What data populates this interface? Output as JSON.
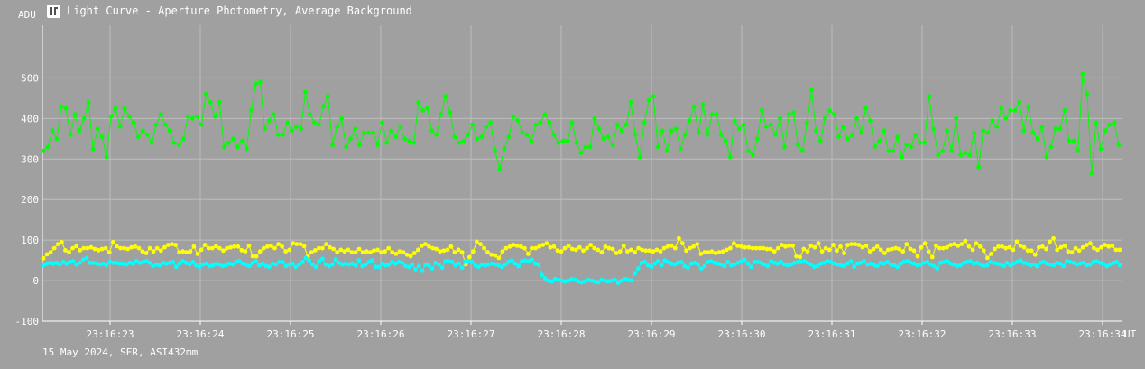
{
  "window": {
    "title": "Light Curve - Aperture Photometry, Average Background",
    "icon": "light-curve-app-icon"
  },
  "footer": {
    "caption": "15 May 2024, SER, ASI432mm"
  },
  "colors": {
    "background": "#a0a0a0",
    "grid": "#bdbdbd",
    "axis": "#ffffff",
    "text": "#ffffff"
  },
  "chart_data": {
    "type": "line",
    "ylabel": "ADU",
    "xlabel": "UT",
    "ylim": [
      -100,
      630
    ],
    "y_ticks": [
      -100,
      0,
      100,
      200,
      300,
      400,
      500
    ],
    "x_time_labels": [
      "23:16:23",
      "23:16:24",
      "23:16:25",
      "23:16:26",
      "23:16:27",
      "23:16:28",
      "23:16:29",
      "23:16:30",
      "23:16:31",
      "23:16:32",
      "23:16:33",
      "23:16:34"
    ],
    "x_time_values": [
      23.0,
      24.0,
      25.0,
      26.0,
      27.0,
      28.0,
      29.0,
      30.0,
      31.0,
      32.0,
      33.0,
      34.0
    ],
    "x_range_seconds": [
      22.25,
      34.22
    ],
    "grid": true,
    "series": [
      {
        "color": "#00ff00",
        "values": [
          320,
          330,
          370,
          350,
          430,
          425,
          360,
          410,
          370,
          400,
          440,
          325,
          375,
          355,
          305,
          405,
          425,
          380,
          425,
          405,
          390,
          355,
          370,
          360,
          340,
          385,
          410,
          385,
          370,
          340,
          335,
          350,
          405,
          400,
          405,
          385,
          460,
          440,
          405,
          440,
          330,
          340,
          350,
          330,
          345,
          325,
          420,
          485,
          490,
          375,
          395,
          410,
          360,
          360,
          390,
          370,
          380,
          375,
          465,
          410,
          390,
          385,
          430,
          455,
          335,
          380,
          400,
          330,
          350,
          375,
          335,
          365,
          365,
          365,
          335,
          390,
          340,
          370,
          355,
          380,
          350,
          345,
          340,
          440,
          420,
          425,
          370,
          360,
          410,
          455,
          415,
          355,
          340,
          345,
          360,
          385,
          350,
          355,
          380,
          390,
          320,
          275,
          325,
          355,
          405,
          395,
          365,
          360,
          345,
          385,
          390,
          410,
          390,
          360,
          340,
          345,
          345,
          390,
          340,
          315,
          330,
          330,
          400,
          375,
          350,
          355,
          335,
          385,
          370,
          385,
          440,
          360,
          305,
          390,
          445,
          455,
          330,
          370,
          320,
          370,
          375,
          325,
          360,
          395,
          430,
          365,
          435,
          360,
          410,
          410,
          360,
          345,
          305,
          395,
          375,
          385,
          320,
          310,
          350,
          420,
          380,
          385,
          360,
          400,
          330,
          410,
          415,
          335,
          320,
          390,
          470,
          370,
          345,
          400,
          420,
          410,
          355,
          380,
          350,
          360,
          400,
          365,
          425,
          395,
          330,
          345,
          370,
          320,
          320,
          355,
          305,
          335,
          330,
          360,
          340,
          340,
          455,
          375,
          310,
          320,
          370,
          320,
          400,
          310,
          315,
          310,
          365,
          280,
          370,
          365,
          395,
          380,
          425,
          400,
          420,
          420,
          440,
          370,
          430,
          365,
          350,
          380,
          305,
          330,
          375,
          375,
          420,
          345,
          345,
          320,
          510,
          460,
          265,
          390,
          325,
          370,
          385,
          390,
          335
        ]
      },
      {
        "color": "#ffff00",
        "values": [
          55,
          65,
          70,
          80,
          90,
          95,
          75,
          70,
          80,
          85,
          75,
          80,
          80,
          82,
          78,
          75,
          78,
          80,
          70,
          95,
          85,
          80,
          80,
          78,
          82,
          84,
          80,
          72,
          68,
          80,
          72,
          80,
          74,
          82,
          88,
          90,
          88,
          70,
          72,
          70,
          72,
          84,
          66,
          76,
          88,
          80,
          80,
          85,
          80,
          74,
          80,
          82,
          84,
          84,
          75,
          72,
          86,
          60,
          60,
          72,
          80,
          84,
          86,
          80,
          90,
          84,
          72,
          76,
          92,
          90,
          90,
          85,
          60,
          70,
          75,
          80,
          80,
          90,
          82,
          78,
          70,
          76,
          72,
          76,
          70,
          70,
          78,
          70,
          72,
          70,
          74,
          76,
          70,
          72,
          80,
          70,
          66,
          72,
          70,
          64,
          60,
          68,
          76,
          86,
          90,
          84,
          80,
          78,
          72,
          74,
          76,
          84,
          70,
          76,
          70,
          40,
          58,
          72,
          96,
          90,
          80,
          70,
          64,
          62,
          56,
          72,
          80,
          84,
          88,
          86,
          84,
          80,
          66,
          80,
          80,
          84,
          88,
          92,
          82,
          84,
          74,
          72,
          80,
          86,
          78,
          76,
          82,
          74,
          80,
          88,
          80,
          76,
          70,
          84,
          80,
          78,
          68,
          72,
          86,
          72,
          76,
          70,
          80,
          76,
          74,
          74,
          72,
          76,
          72,
          80,
          84,
          86,
          80,
          104,
          92,
          74,
          80,
          84,
          90,
          66,
          70,
          70,
          72,
          68,
          70,
          72,
          76,
          80,
          92,
          86,
          84,
          82,
          82,
          80,
          80,
          80,
          80,
          78,
          78,
          72,
          80,
          88,
          84,
          86,
          86,
          60,
          58,
          78,
          72,
          86,
          82,
          92,
          72,
          80,
          76,
          88,
          74,
          84,
          68,
          88,
          90,
          90,
          88,
          82,
          86,
          72,
          78,
          84,
          76,
          68,
          76,
          78,
          80,
          78,
          72,
          90,
          78,
          74,
          60,
          82,
          92,
          72,
          58,
          86,
          80,
          80,
          82,
          88,
          90,
          86,
          90,
          98,
          84,
          76,
          92,
          84,
          74,
          56,
          66,
          78,
          84,
          84,
          80,
          82,
          76,
          96,
          86,
          82,
          74,
          74,
          64,
          82,
          84,
          78,
          96,
          104,
          76,
          82,
          86,
          72,
          70,
          80,
          74,
          82,
          88,
          92,
          80,
          76,
          82,
          88,
          84,
          86,
          76,
          76
        ]
      },
      {
        "color": "#00ffff",
        "values": [
          38,
          42,
          44,
          42,
          44,
          40,
          46,
          42,
          46,
          48,
          40,
          44,
          52,
          56,
          44,
          44,
          42,
          40,
          42,
          38,
          46,
          44,
          44,
          42,
          42,
          40,
          44,
          42,
          48,
          44,
          46,
          48,
          44,
          36,
          40,
          38,
          44,
          42,
          44,
          46,
          34,
          42,
          48,
          44,
          40,
          46,
          38,
          34,
          40,
          42,
          36,
          38,
          42,
          40,
          36,
          38,
          42,
          40,
          46,
          48,
          42,
          38,
          36,
          44,
          48,
          38,
          42,
          36,
          34,
          42,
          40,
          46,
          46,
          36,
          40,
          42,
          34,
          40,
          46,
          56,
          50,
          40,
          34,
          48,
          54,
          40,
          36,
          40,
          52,
          44,
          40,
          42,
          40,
          42,
          38,
          50,
          36,
          40,
          46,
          50,
          34,
          34,
          42,
          38,
          40,
          46,
          42,
          46,
          44,
          36,
          34,
          40,
          28,
          36,
          24,
          40,
          38,
          30,
          44,
          40,
          32,
          48,
          48,
          46,
          38,
          42,
          32,
          48,
          48,
          46,
          38,
          34,
          40,
          38,
          40,
          42,
          40,
          38,
          34,
          40,
          46,
          50,
          42,
          36,
          48,
          50,
          48,
          52,
          42,
          40,
          14,
          6,
          0,
          -2,
          4,
          2,
          0,
          -2,
          0,
          4,
          2,
          -2,
          -4,
          -2,
          2,
          0,
          -2,
          -4,
          2,
          0,
          -2,
          0,
          2,
          -6,
          0,
          4,
          2,
          0,
          18,
          30,
          44,
          46,
          38,
          34,
          42,
          48,
          38,
          50,
          46,
          42,
          40,
          44,
          46,
          36,
          32,
          42,
          44,
          40,
          30,
          36,
          46,
          48,
          44,
          42,
          40,
          36,
          46,
          38,
          40,
          44,
          48,
          52,
          42,
          34,
          46,
          46,
          44,
          40,
          36,
          48,
          44,
          42,
          46,
          40,
          38,
          40,
          44,
          46,
          46,
          48,
          44,
          40,
          34,
          36,
          42,
          44,
          48,
          46,
          42,
          40,
          38,
          36,
          42,
          48,
          34,
          42,
          44,
          48,
          40,
          42,
          38,
          36,
          44,
          42,
          46,
          40,
          38,
          34,
          42,
          46,
          48,
          44,
          42,
          38,
          40,
          44,
          46,
          40,
          36,
          30,
          44,
          46,
          48,
          42,
          40,
          36,
          38,
          44,
          46,
          48,
          42,
          44,
          40,
          36,
          38,
          46,
          44,
          42,
          40,
          36,
          44,
          38,
          42,
          46,
          50,
          44,
          42,
          38,
          40,
          36,
          44,
          46,
          42,
          40,
          38,
          44,
          42,
          36,
          48,
          46,
          44,
          40,
          42,
          44,
          38,
          40,
          46,
          48,
          44,
          42,
          36,
          40,
          44,
          46,
          38
        ]
      }
    ]
  }
}
